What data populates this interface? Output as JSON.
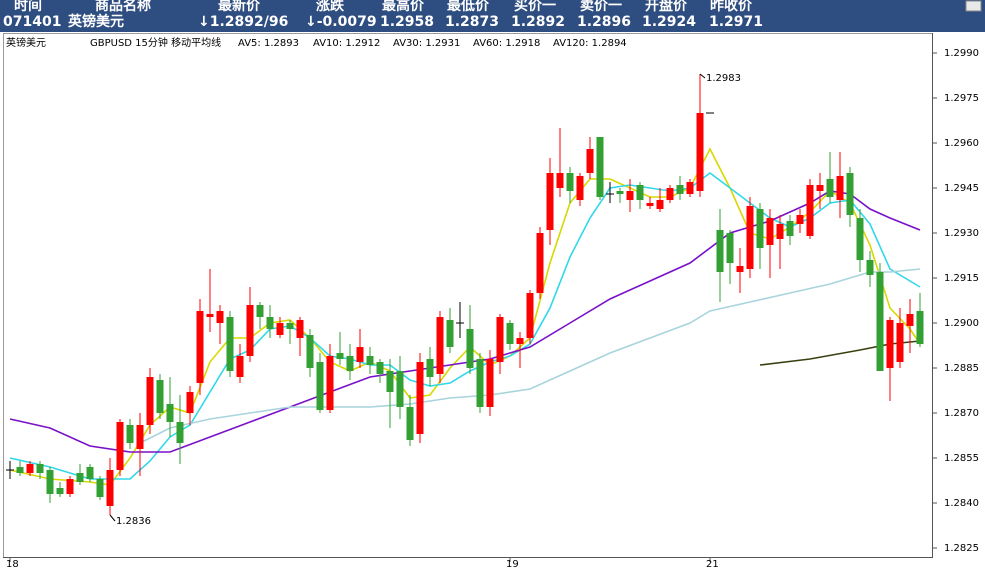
{
  "header": {
    "columns": [
      "时间",
      "商品名称",
      "最新价",
      "涨跌",
      "最高价",
      "最低价",
      "买价一",
      "卖价一",
      "开盘价",
      "昨收价"
    ],
    "row": [
      "071401",
      "英镑美元",
      "↓1.2892/96",
      "↓-0.0079",
      "1.2958",
      "1.2873",
      "1.2892",
      "1.2896",
      "1.2924",
      "1.2971"
    ]
  },
  "chart_data": {
    "type": "candlestick",
    "title": "英镑美元",
    "subtitle": "GBPUSD 15分钟 移动平均线",
    "up_color": "#ff0000",
    "down_color": "#33a033",
    "flat_color": "#000000",
    "open": [
      1.2851,
      1.2852,
      1.285,
      1.2853,
      1.2851,
      1.2845,
      1.2843,
      1.285,
      1.2852,
      1.2848,
      1.2839,
      1.2851,
      1.2866,
      1.2858,
      1.2866,
      1.2881,
      1.2873,
      1.2867,
      1.287,
      1.288,
      1.2902,
      1.29,
      1.2902,
      1.2882,
      1.2889,
      1.2906,
      1.2902,
      1.2896,
      1.29,
      1.2895,
      1.2896,
      1.2887,
      1.2871,
      1.289,
      1.2889,
      1.2887,
      1.2889,
      1.2887,
      1.2884,
      1.2884,
      1.2872,
      1.2863,
      1.2888,
      1.2883,
      1.2901,
      1.29,
      1.2898,
      1.2888,
      1.2872,
      1.2887,
      1.29,
      1.2893,
      1.2895,
      1.291,
      1.2931,
      1.2945,
      1.295,
      1.2941,
      1.295,
      1.2962,
      1.2943,
      1.2944,
      1.2941,
      1.2946,
      1.2939,
      1.2938,
      1.2941,
      1.2946,
      1.2943,
      1.2944,
      1.297,
      1.2931,
      1.293,
      1.2917,
      1.2918,
      1.2938,
      1.2926,
      1.2928,
      1.2934,
      1.2933,
      1.2929,
      1.2944,
      1.2948,
      1.2941,
      1.295,
      1.2935,
      1.2921,
      1.2917,
      1.2885,
      1.2887,
      1.2899,
      1.2904
    ],
    "high": [
      1.2854,
      1.2854,
      1.2854,
      1.2854,
      1.2852,
      1.2847,
      1.2849,
      1.2853,
      1.2853,
      1.2849,
      1.2855,
      1.2868,
      1.2868,
      1.287,
      1.2885,
      1.2883,
      1.2882,
      1.2876,
      1.2879,
      1.2908,
      1.2918,
      1.2906,
      1.2904,
      1.2893,
      1.2912,
      1.2907,
      1.2906,
      1.2902,
      1.2901,
      1.2902,
      1.2898,
      1.289,
      1.2893,
      1.2897,
      1.2893,
      1.2898,
      1.2892,
      1.2888,
      1.2888,
      1.2889,
      1.2876,
      1.289,
      1.2892,
      1.2904,
      1.2905,
      1.2907,
      1.2906,
      1.289,
      1.2891,
      1.2903,
      1.2901,
      1.2897,
      1.2911,
      1.2932,
      1.2955,
      1.2965,
      1.2952,
      1.295,
      1.2962,
      1.2962,
      1.2947,
      1.2945,
      1.2948,
      1.2947,
      1.2942,
      1.2945,
      1.2946,
      1.2949,
      1.2948,
      1.2983,
      1.297,
      1.2938,
      1.2931,
      1.2925,
      1.2942,
      1.294,
      1.2938,
      1.2936,
      1.2936,
      1.2938,
      1.2948,
      1.295,
      1.2957,
      1.2957,
      1.2952,
      1.2938,
      1.2924,
      1.292,
      1.2902,
      1.2905,
      1.2908,
      1.291
    ],
    "low": [
      1.2848,
      1.2849,
      1.2849,
      1.2848,
      1.284,
      1.2842,
      1.2842,
      1.2846,
      1.2847,
      1.2841,
      1.2836,
      1.2849,
      1.2858,
      1.2849,
      1.2863,
      1.2868,
      1.2862,
      1.2853,
      1.2866,
      1.2876,
      1.2897,
      1.2893,
      1.2882,
      1.288,
      1.2887,
      1.2898,
      1.2895,
      1.2895,
      1.2893,
      1.2889,
      1.2882,
      1.287,
      1.287,
      1.2886,
      1.2881,
      1.2885,
      1.2883,
      1.288,
      1.2865,
      1.2868,
      1.2859,
      1.286,
      1.2879,
      1.288,
      1.289,
      1.2895,
      1.2883,
      1.287,
      1.2869,
      1.2883,
      1.2891,
      1.2885,
      1.2893,
      1.2908,
      1.2926,
      1.2942,
      1.294,
      1.2939,
      1.2948,
      1.2941,
      1.294,
      1.294,
      1.2937,
      1.2938,
      1.2938,
      1.2937,
      1.294,
      1.2941,
      1.2942,
      1.2942,
      1.297,
      1.2907,
      1.2913,
      1.291,
      1.2915,
      1.2918,
      1.2915,
      1.2918,
      1.2926,
      1.293,
      1.2928,
      1.2938,
      1.294,
      1.2935,
      1.2932,
      1.2917,
      1.2912,
      1.2884,
      1.2874,
      1.2885,
      1.289,
      1.2892
    ],
    "close": [
      1.2851,
      1.285,
      1.2853,
      1.285,
      1.2843,
      1.2843,
      1.2848,
      1.2847,
      1.2848,
      1.2842,
      1.2851,
      1.2867,
      1.286,
      1.2866,
      1.2882,
      1.287,
      1.2867,
      1.286,
      1.2877,
      1.2904,
      1.2903,
      1.2904,
      1.2884,
      1.2889,
      1.2906,
      1.2902,
      1.2898,
      1.29,
      1.2898,
      1.2901,
      1.2885,
      1.2871,
      1.2889,
      1.2888,
      1.2884,
      1.2892,
      1.2886,
      1.2883,
      1.2877,
      1.2872,
      1.2861,
      1.2887,
      1.2882,
      1.2902,
      1.2892,
      1.29,
      1.2885,
      1.2872,
      1.2888,
      1.2902,
      1.2893,
      1.2895,
      1.291,
      1.293,
      1.295,
      1.295,
      1.2944,
      1.2949,
      1.2958,
      1.2942,
      1.2943,
      1.2943,
      1.2944,
      1.2941,
      1.294,
      1.2941,
      1.2945,
      1.2943,
      1.2947,
      1.297,
      1.297,
      1.2917,
      1.292,
      1.2919,
      1.2939,
      1.2925,
      1.2935,
      1.2933,
      1.2929,
      1.2936,
      1.2946,
      1.2946,
      1.2942,
      1.2949,
      1.2936,
      1.2921,
      1.2916,
      1.2884,
      1.2901,
      1.29,
      1.2903,
      1.2893
    ],
    "series": [
      {
        "name": "AV5: 1.2893",
        "color": "#d8d800",
        "x": [
          0,
          4,
          8,
          10,
          12,
          14,
          16,
          18,
          20,
          22,
          24,
          26,
          28,
          30,
          32,
          34,
          36,
          38,
          40,
          42,
          44,
          46,
          48,
          50,
          52,
          54,
          56,
          58,
          60,
          62,
          64,
          66,
          68,
          70,
          72,
          74,
          76,
          78,
          80,
          82,
          84,
          86,
          88,
          90,
          91
        ],
        "values": [
          1.2851,
          1.2848,
          1.2847,
          1.2846,
          1.2855,
          1.2866,
          1.2872,
          1.287,
          1.2887,
          1.2895,
          1.2895,
          1.29,
          1.2901,
          1.2895,
          1.2887,
          1.2884,
          1.2887,
          1.2884,
          1.2875,
          1.2876,
          1.2885,
          1.2892,
          1.2886,
          1.2889,
          1.2895,
          1.292,
          1.294,
          1.2948,
          1.2948,
          1.2945,
          1.2942,
          1.2942,
          1.2945,
          1.2958,
          1.2945,
          1.293,
          1.2928,
          1.2932,
          1.2937,
          1.2944,
          1.294,
          1.2926,
          1.2905,
          1.2898,
          1.2893
        ]
      },
      {
        "name": "AV10: 1.2912",
        "color": "#30d8e8",
        "x": [
          0,
          4,
          8,
          12,
          14,
          16,
          18,
          20,
          22,
          24,
          26,
          28,
          30,
          32,
          34,
          36,
          38,
          40,
          42,
          44,
          46,
          48,
          50,
          52,
          54,
          56,
          58,
          60,
          62,
          64,
          66,
          68,
          70,
          72,
          74,
          76,
          78,
          80,
          82,
          84,
          86,
          88,
          90,
          91
        ],
        "values": [
          1.2855,
          1.2852,
          1.2848,
          1.2848,
          1.2854,
          1.2862,
          1.2866,
          1.2877,
          1.2888,
          1.2891,
          1.2898,
          1.2899,
          1.2895,
          1.2889,
          1.2888,
          1.2886,
          1.2886,
          1.2881,
          1.2879,
          1.288,
          1.2884,
          1.2887,
          1.2889,
          1.2893,
          1.2905,
          1.2922,
          1.2935,
          1.2945,
          1.2946,
          1.2945,
          1.2944,
          1.2945,
          1.295,
          1.2945,
          1.294,
          1.2935,
          1.2932,
          1.2935,
          1.294,
          1.2941,
          1.2933,
          1.2918,
          1.2914,
          1.2912
        ]
      },
      {
        "name": "AV30: 1.2931",
        "color": "#7a10c8",
        "x": [
          0,
          4,
          8,
          12,
          16,
          20,
          24,
          28,
          32,
          36,
          40,
          44,
          48,
          52,
          56,
          60,
          64,
          68,
          72,
          76,
          80,
          82,
          84,
          86,
          88,
          91
        ],
        "values": [
          1.2868,
          1.2865,
          1.2859,
          1.2857,
          1.2857,
          1.2862,
          1.2867,
          1.2872,
          1.2877,
          1.2882,
          1.2884,
          1.2886,
          1.2888,
          1.2892,
          1.29,
          1.2908,
          1.2914,
          1.292,
          1.293,
          1.2934,
          1.294,
          1.2944,
          1.2943,
          1.2938,
          1.2935,
          1.2931
        ]
      },
      {
        "name": "AV60: 1.2918",
        "color": "#a8d4dc",
        "x": [
          13,
          16,
          20,
          24,
          28,
          32,
          36,
          40,
          44,
          48,
          52,
          56,
          60,
          64,
          68,
          70,
          74,
          78,
          82,
          86,
          88,
          91
        ],
        "values": [
          1.286,
          1.2865,
          1.2868,
          1.287,
          1.2872,
          1.2872,
          1.2872,
          1.2873,
          1.2875,
          1.2876,
          1.2878,
          1.2884,
          1.289,
          1.2895,
          1.29,
          1.2904,
          1.2907,
          1.291,
          1.2913,
          1.2917,
          1.2917,
          1.2918
        ]
      },
      {
        "name": "AV120: 1.2894",
        "color": "#3c4010",
        "x": [
          75,
          80,
          85,
          88,
          91
        ],
        "values": [
          1.2886,
          1.2888,
          1.2891,
          1.2893,
          1.2894
        ]
      }
    ],
    "annotations": [
      {
        "text": "1.2983",
        "x": 69,
        "y": 1.2983
      },
      {
        "text": "1.2836",
        "x": 10,
        "y": 1.2836
      }
    ],
    "xlim": [
      -0.5,
      92.5
    ],
    "xticks": [
      {
        "value": 0,
        "label": "18"
      },
      {
        "value": 50,
        "label": "19"
      },
      {
        "value": 70,
        "label": "21"
      }
    ],
    "ylim": [
      1.2822,
      1.2995
    ],
    "yticks": [
      {
        "value": 1.299,
        "label": "1.2990"
      },
      1.2975,
      {
        "value": 1.296,
        "label": "1.2960"
      },
      1.2945,
      {
        "value": 1.293,
        "label": "1.2930"
      },
      1.2915,
      {
        "value": 1.29,
        "label": "1.2900"
      },
      1.2885,
      {
        "value": 1.287,
        "label": "1.2870"
      },
      1.2855,
      {
        "value": 1.284,
        "label": "1.2840"
      },
      1.2825
    ],
    "grid": false
  }
}
